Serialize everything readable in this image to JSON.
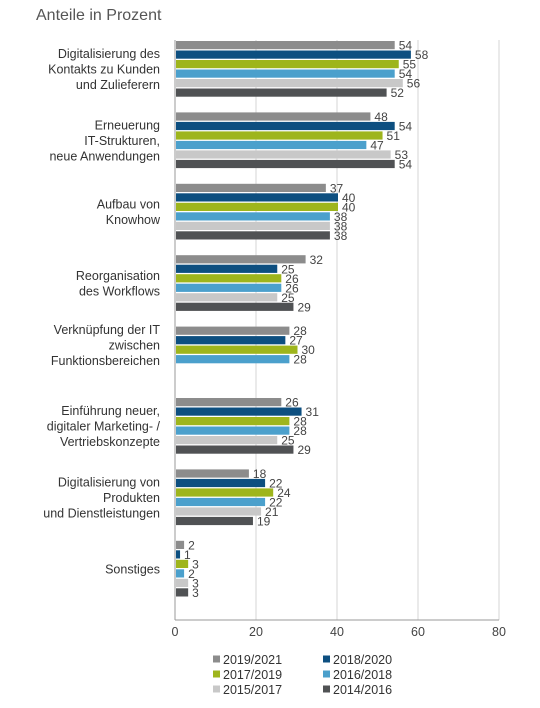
{
  "chart_data": {
    "type": "bar",
    "orientation": "horizontal",
    "title": "Anteile in Prozent",
    "xlim": [
      0,
      80
    ],
    "xticks": [
      0,
      20,
      40,
      60,
      80
    ],
    "grid": true,
    "legend_position": "bottom",
    "categories": [
      [
        "Digitalisierung des",
        "Kontakts zu Kunden",
        "und Zulieferern"
      ],
      [
        "Erneuerung",
        "IT-Strukturen,",
        "neue Anwendungen"
      ],
      [
        "Aufbau von",
        "Knowhow"
      ],
      [
        "Reorganisation",
        "des Workflows"
      ],
      [
        "Verknüpfung der IT",
        "zwischen",
        "Funktionsbereichen"
      ],
      [
        "Einführung neuer,",
        "digitaler Marketing- /",
        "Vertriebskonzepte"
      ],
      [
        "Digitalisierung von",
        "Produkten",
        "und Dienstleistungen"
      ],
      [
        "Sonstiges"
      ]
    ],
    "series": [
      {
        "name": "2019/2021",
        "color": "#8c8c8c",
        "values": [
          54,
          48,
          37,
          32,
          28,
          26,
          18,
          2
        ]
      },
      {
        "name": "2018/2020",
        "color": "#0d4f80",
        "values": [
          58,
          54,
          40,
          25,
          27,
          31,
          22,
          1
        ]
      },
      {
        "name": "2017/2019",
        "color": "#9eb51c",
        "values": [
          55,
          51,
          40,
          26,
          30,
          28,
          24,
          3
        ]
      },
      {
        "name": "2016/2018",
        "color": "#4ba0cc",
        "values": [
          54,
          47,
          38,
          26,
          28,
          28,
          22,
          2
        ]
      },
      {
        "name": "2015/2017",
        "color": "#c8c8c8",
        "values": [
          56,
          53,
          38,
          25,
          null,
          25,
          21,
          3
        ]
      },
      {
        "name": "2014/2016",
        "color": "#505254",
        "values": [
          52,
          54,
          38,
          29,
          null,
          29,
          19,
          3
        ]
      }
    ]
  }
}
